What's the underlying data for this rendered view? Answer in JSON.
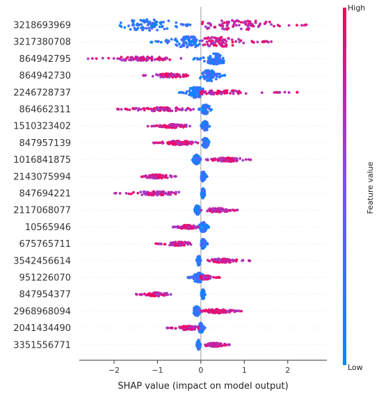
{
  "chart_data": {
    "type": "scatter",
    "subtype": "shap-beeswarm",
    "title": "",
    "xlabel": "SHAP value (impact on model output)",
    "ylabel": "",
    "xlim": [
      -2.8,
      2.9
    ],
    "xticks": [
      {
        "value": -2,
        "label": "−2"
      },
      {
        "value": -1,
        "label": "−1"
      },
      {
        "value": 0,
        "label": "0"
      },
      {
        "value": 1,
        "label": "1"
      },
      {
        "value": 2,
        "label": "2"
      }
    ],
    "grid": false,
    "colorbar": {
      "title": "Feature value",
      "high_label": "High",
      "low_label": "Low",
      "low_color": "#008bfb",
      "mid_color": "#7c52ff",
      "high_color": "#ff0052"
    },
    "features": [
      {
        "name": "3218693969",
        "low": {
          "min": -1.9,
          "max": 0.0,
          "center": -1.2
        },
        "high": {
          "min": 0.0,
          "max": 2.65,
          "center": 0.8
        }
      },
      {
        "name": "3217380708",
        "low": {
          "min": -1.2,
          "max": 0.0,
          "center": -0.3
        },
        "high": {
          "min": 0.0,
          "max": 1.7,
          "center": 0.4
        }
      },
      {
        "name": "864942795",
        "low": {
          "min": -0.2,
          "max": 0.55,
          "center": 0.35
        },
        "high": {
          "min": -2.6,
          "max": -0.45,
          "center": -1.4
        }
      },
      {
        "name": "864942730",
        "low": {
          "min": -0.05,
          "max": 0.55,
          "center": 0.2
        },
        "high": {
          "min": -1.35,
          "max": -0.25,
          "center": -0.7
        }
      },
      {
        "name": "2246728737",
        "low": {
          "min": -0.5,
          "max": 0.05,
          "center": -0.1
        },
        "high": {
          "min": 0.0,
          "max": 2.3,
          "center": 0.4
        }
      },
      {
        "name": "864662311",
        "low": {
          "min": -0.05,
          "max": 0.25,
          "center": 0.1
        },
        "high": {
          "min": -1.95,
          "max": -0.15,
          "center": -0.9
        }
      },
      {
        "name": "1510323402",
        "low": {
          "min": 0.0,
          "max": 0.2,
          "center": 0.1
        },
        "high": {
          "min": -1.25,
          "max": -0.2,
          "center": -0.6
        }
      },
      {
        "name": "847957139",
        "low": {
          "min": 0.0,
          "max": 0.2,
          "center": 0.1
        },
        "high": {
          "min": -1.1,
          "max": -0.05,
          "center": -0.5
        }
      },
      {
        "name": "1016841875",
        "low": {
          "min": -0.2,
          "max": 0.0,
          "center": -0.1
        },
        "high": {
          "min": 0.1,
          "max": 1.15,
          "center": 0.6
        }
      },
      {
        "name": "2143075994",
        "low": {
          "min": 0.0,
          "max": 0.15,
          "center": 0.05
        },
        "high": {
          "min": -1.4,
          "max": -0.55,
          "center": -1.0
        }
      },
      {
        "name": "847694221",
        "low": {
          "min": 0.0,
          "max": 0.1,
          "center": 0.05
        },
        "high": {
          "min": -2.05,
          "max": -0.5,
          "center": -1.0
        }
      },
      {
        "name": "2117068077",
        "low": {
          "min": -0.15,
          "max": 0.0,
          "center": -0.08
        },
        "high": {
          "min": 0.0,
          "max": 0.9,
          "center": 0.4
        }
      },
      {
        "name": "10565946",
        "low": {
          "min": -0.05,
          "max": 0.2,
          "center": 0.05
        },
        "high": {
          "min": -0.65,
          "max": -0.05,
          "center": -0.3
        }
      },
      {
        "name": "675765711",
        "low": {
          "min": 0.0,
          "max": 0.15,
          "center": 0.05
        },
        "high": {
          "min": -1.05,
          "max": -0.2,
          "center": -0.5
        }
      },
      {
        "name": "3542456614",
        "low": {
          "min": -0.1,
          "max": 0.0,
          "center": -0.05
        },
        "high": {
          "min": 0.1,
          "max": 1.15,
          "center": 0.5
        }
      },
      {
        "name": "951226070",
        "low": {
          "min": -0.3,
          "max": 0.1,
          "center": -0.05
        },
        "high": {
          "min": 0.0,
          "max": 0.45,
          "center": 0.1
        }
      },
      {
        "name": "847954377",
        "low": {
          "min": 0.0,
          "max": 0.1,
          "center": 0.05
        },
        "high": {
          "min": -1.5,
          "max": -0.65,
          "center": -1.0
        }
      },
      {
        "name": "2968968094",
        "low": {
          "min": -0.2,
          "max": 0.0,
          "center": -0.1
        },
        "high": {
          "min": 0.0,
          "max": 0.95,
          "center": 0.4
        }
      },
      {
        "name": "2041434490",
        "low": {
          "min": -0.05,
          "max": 0.1,
          "center": 0.0
        },
        "high": {
          "min": -0.8,
          "max": -0.05,
          "center": -0.3
        }
      },
      {
        "name": "3351556771",
        "low": {
          "min": -0.1,
          "max": 0.0,
          "center": -0.05
        },
        "high": {
          "min": 0.1,
          "max": 0.75,
          "center": 0.3
        }
      }
    ]
  }
}
